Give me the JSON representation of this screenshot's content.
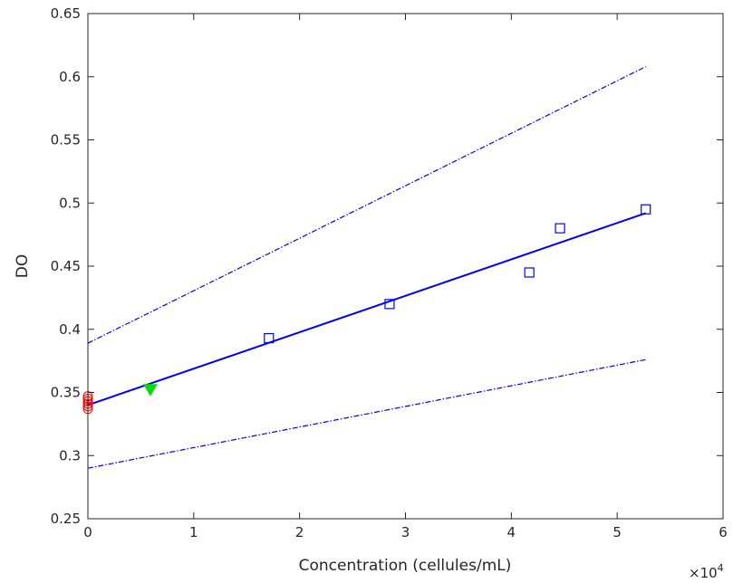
{
  "chart_data": {
    "type": "scatter",
    "xlabel": "Concentration (cellules/mL)",
    "ylabel": "DO",
    "x_exponent_label": "×10",
    "x_exponent_power": "4",
    "xlim": [
      0,
      6
    ],
    "ylim": [
      0.25,
      0.65
    ],
    "x_ticks": [
      0,
      1,
      2,
      3,
      4,
      5,
      6
    ],
    "y_ticks": [
      0.25,
      0.3,
      0.35,
      0.4,
      0.45,
      0.5,
      0.55,
      0.6,
      0.65
    ],
    "x_tick_labels": [
      "0",
      "1",
      "2",
      "3",
      "4",
      "5",
      "6"
    ],
    "y_tick_labels": [
      "0.25",
      "0.3",
      "0.35",
      "0.4",
      "0.45",
      "0.5",
      "0.55",
      "0.6",
      "0.65"
    ],
    "grid": false,
    "series": [
      {
        "kind": "points",
        "marker": "square",
        "color": "#0000ff",
        "x": [
          1.71,
          2.85,
          4.17,
          4.46,
          5.27
        ],
        "y": [
          0.393,
          0.42,
          0.445,
          0.48,
          0.495
        ]
      },
      {
        "kind": "line",
        "style": "solid",
        "color": "#0000ff",
        "x": [
          0,
          5.27
        ],
        "y": [
          0.34,
          0.492
        ]
      },
      {
        "kind": "line",
        "style": "dashdot",
        "color": "#0000ff",
        "x": [
          0,
          5.27
        ],
        "y": [
          0.389,
          0.608
        ]
      },
      {
        "kind": "line",
        "style": "dashdot",
        "color": "#0000ff",
        "x": [
          0,
          5.27
        ],
        "y": [
          0.29,
          0.376
        ]
      },
      {
        "kind": "points",
        "marker": "triangle-down",
        "color": "#00e000",
        "x": [
          0.59
        ],
        "y": [
          0.352
        ]
      },
      {
        "kind": "points",
        "marker": "circle",
        "color": "#ff0000",
        "x": [
          0,
          0,
          0,
          0,
          0,
          0
        ],
        "y": [
          0.337,
          0.339,
          0.341,
          0.343,
          0.345,
          0.347
        ]
      }
    ]
  }
}
